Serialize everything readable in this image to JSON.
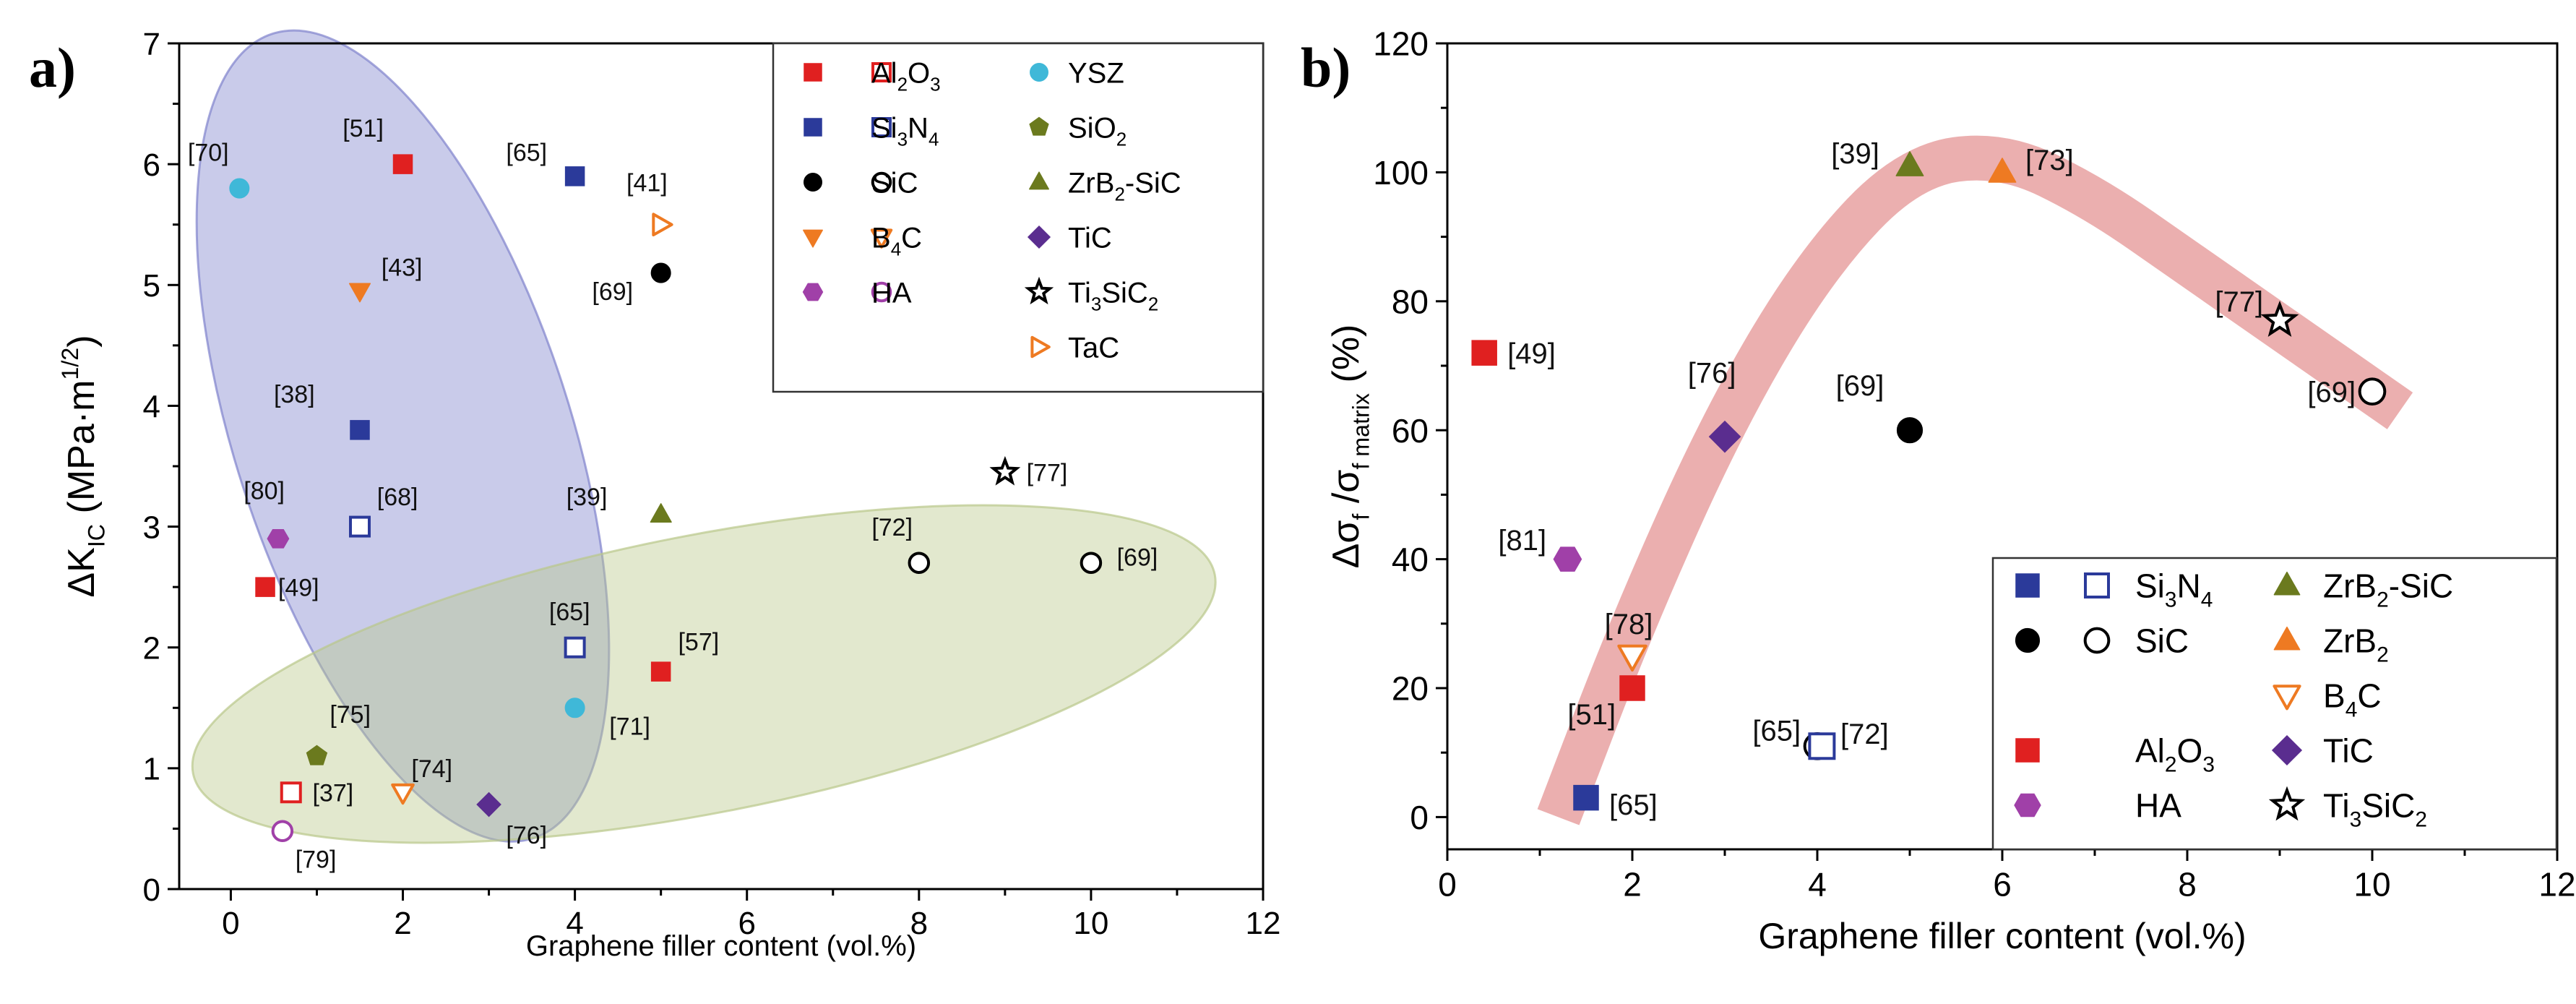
{
  "chart_data": [
    {
      "panel": "a)",
      "type": "scatter",
      "xlabel": "Graphene filler content (vol.%)",
      "ylabel": {
        "delta": "Δ",
        "K": "K",
        "sub": "IC",
        "units": " (MPa·m",
        "sup": "1/2",
        "close": ")"
      },
      "xlim": [
        -0.6,
        12
      ],
      "ylim": [
        0,
        7
      ],
      "xticks": [
        0,
        2,
        4,
        6,
        8,
        10,
        12
      ],
      "yticks": [
        0,
        1,
        2,
        3,
        4,
        5,
        6,
        7
      ],
      "grid": false,
      "legend_position": "top-right",
      "legend": [
        {
          "col": 0,
          "row": 0,
          "markers": [
            [
              "square",
              true
            ],
            [
              "square",
              false
            ]
          ],
          "color": "#e02020",
          "label": [
            [
              "Al",
              ""
            ],
            [
              "2",
              "sub"
            ],
            [
              "O",
              ""
            ],
            [
              "3",
              "sub"
            ]
          ]
        },
        {
          "col": 0,
          "row": 1,
          "markers": [
            [
              "square",
              true
            ],
            [
              "square",
              false
            ]
          ],
          "color": "#2b3a9a",
          "label": [
            [
              "Si",
              ""
            ],
            [
              "3",
              "sub"
            ],
            [
              "N",
              ""
            ],
            [
              "4",
              "sub"
            ]
          ]
        },
        {
          "col": 0,
          "row": 2,
          "markers": [
            [
              "circle",
              true
            ],
            [
              "circle",
              false
            ]
          ],
          "color": "#000000",
          "label": [
            [
              "SiC",
              ""
            ]
          ]
        },
        {
          "col": 0,
          "row": 3,
          "markers": [
            [
              "tri-down",
              true
            ],
            [
              "tri-down",
              false
            ]
          ],
          "color": "#ee7a22",
          "label": [
            [
              "B",
              ""
            ],
            [
              "4",
              "sub"
            ],
            [
              "C",
              ""
            ]
          ]
        },
        {
          "col": 0,
          "row": 4,
          "markers": [
            [
              "hexagon",
              true
            ],
            [
              "circle",
              false
            ]
          ],
          "color": "#a040a8",
          "label": [
            [
              "HA",
              ""
            ]
          ]
        },
        {
          "col": 1,
          "row": 0,
          "markers": [
            [
              "circle",
              true
            ]
          ],
          "color": "#3fb8d8",
          "label": [
            [
              "YSZ",
              ""
            ]
          ]
        },
        {
          "col": 1,
          "row": 1,
          "markers": [
            [
              "pentagon",
              true
            ]
          ],
          "color": "#6b7a1e",
          "label": [
            [
              "SiO",
              ""
            ],
            [
              "2",
              "sub"
            ]
          ]
        },
        {
          "col": 1,
          "row": 2,
          "markers": [
            [
              "tri-up",
              true
            ]
          ],
          "color": "#6b7a1e",
          "label": [
            [
              "ZrB",
              ""
            ],
            [
              "2",
              "sub"
            ],
            [
              "-SiC",
              ""
            ]
          ]
        },
        {
          "col": 1,
          "row": 3,
          "markers": [
            [
              "diamond",
              true
            ]
          ],
          "color": "#5a2d8f",
          "label": [
            [
              "TiC",
              ""
            ]
          ]
        },
        {
          "col": 1,
          "row": 4,
          "markers": [
            [
              "star",
              false
            ]
          ],
          "color": "#000000",
          "label": [
            [
              "Ti",
              ""
            ],
            [
              "3",
              "sub"
            ],
            [
              "SiC",
              ""
            ],
            [
              "2",
              "sub"
            ]
          ]
        },
        {
          "col": 1,
          "row": 5,
          "markers": [
            [
              "tri-right",
              false
            ]
          ],
          "color": "#ee7a22",
          "label": [
            [
              "TaC",
              ""
            ]
          ]
        }
      ],
      "points": [
        {
          "material": "YSZ",
          "shape": "circle",
          "filled": true,
          "color": "#3fb8d8",
          "x": 0.1,
          "y": 5.8,
          "ref": "[70]",
          "lx": -0.5,
          "ly": 6.1
        },
        {
          "material": "Al2O3",
          "shape": "square",
          "filled": true,
          "color": "#e02020",
          "x": 2.0,
          "y": 6.0,
          "ref": "[51]",
          "lx": 1.3,
          "ly": 6.3
        },
        {
          "material": "Si3N4",
          "shape": "square",
          "filled": true,
          "color": "#2b3a9a",
          "x": 4.0,
          "y": 5.9,
          "ref": "[65]",
          "lx": 3.2,
          "ly": 6.1
        },
        {
          "material": "TaC",
          "shape": "tri-right",
          "filled": false,
          "color": "#ee7a22",
          "x": 5.0,
          "y": 5.5,
          "ref": "[41]",
          "lx": 4.6,
          "ly": 5.85
        },
        {
          "material": "SiC",
          "shape": "circle",
          "filled": true,
          "color": "#000000",
          "x": 5.0,
          "y": 5.1,
          "ref": "[69]",
          "lx": 4.2,
          "ly": 4.95
        },
        {
          "material": "B4C",
          "shape": "tri-down",
          "filled": true,
          "color": "#ee7a22",
          "x": 1.5,
          "y": 4.95,
          "ref": "[43]",
          "lx": 1.75,
          "ly": 5.15
        },
        {
          "material": "Si3N4",
          "shape": "square",
          "filled": true,
          "color": "#2b3a9a",
          "x": 1.5,
          "y": 3.8,
          "ref": "[38]",
          "lx": 0.5,
          "ly": 4.1
        },
        {
          "material": "Si3N4",
          "shape": "square",
          "filled": false,
          "color": "#2b3a9a",
          "x": 1.5,
          "y": 3.0,
          "ref": "[68]",
          "lx": 1.7,
          "ly": 3.25
        },
        {
          "material": "ZrB2-SiC",
          "shape": "tri-up",
          "filled": true,
          "color": "#6b7a1e",
          "x": 5.0,
          "y": 3.1,
          "ref": "[39]",
          "lx": 3.9,
          "ly": 3.25
        },
        {
          "material": "HA",
          "shape": "hexagon",
          "filled": true,
          "color": "#a040a8",
          "x": 0.55,
          "y": 2.9,
          "ref": "[80]",
          "lx": 0.15,
          "ly": 3.3
        },
        {
          "material": "Al2O3",
          "shape": "square",
          "filled": true,
          "color": "#e02020",
          "x": 0.4,
          "y": 2.5,
          "ref": "[49]",
          "lx": 0.55,
          "ly": 2.5
        },
        {
          "material": "Ti3SiC2",
          "shape": "star",
          "filled": false,
          "color": "#000000",
          "x": 9.0,
          "y": 3.45,
          "ref": "[77]",
          "lx": 9.25,
          "ly": 3.45
        },
        {
          "material": "SiC",
          "shape": "circle",
          "filled": false,
          "color": "#000000",
          "x": 8.0,
          "y": 2.7,
          "ref": "[72]",
          "lx": 7.45,
          "ly": 3.0
        },
        {
          "material": "SiC",
          "shape": "circle",
          "filled": false,
          "color": "#000000",
          "x": 10.0,
          "y": 2.7,
          "ref": "[69]",
          "lx": 10.3,
          "ly": 2.75
        },
        {
          "material": "Si3N4",
          "shape": "square",
          "filled": false,
          "color": "#2b3a9a",
          "x": 4.0,
          "y": 2.0,
          "ref": "[65]",
          "lx": 3.7,
          "ly": 2.3
        },
        {
          "material": "Al2O3",
          "shape": "square",
          "filled": true,
          "color": "#e02020",
          "x": 5.0,
          "y": 1.8,
          "ref": "[57]",
          "lx": 5.2,
          "ly": 2.05
        },
        {
          "material": "YSZ",
          "shape": "circle",
          "filled": true,
          "color": "#3fb8d8",
          "x": 4.0,
          "y": 1.5,
          "ref": "[71]",
          "lx": 4.4,
          "ly": 1.35
        },
        {
          "material": "SiO2",
          "shape": "pentagon",
          "filled": true,
          "color": "#6b7a1e",
          "x": 1.0,
          "y": 1.1,
          "ref": "[75]",
          "lx": 1.15,
          "ly": 1.45
        },
        {
          "material": "B4C",
          "shape": "tri-down",
          "filled": false,
          "color": "#ee7a22",
          "x": 2.0,
          "y": 0.8,
          "ref": "[74]",
          "lx": 2.1,
          "ly": 1.0
        },
        {
          "material": "Al2O3",
          "shape": "square",
          "filled": false,
          "color": "#e02020",
          "x": 0.7,
          "y": 0.8,
          "ref": "[37]",
          "lx": 0.95,
          "ly": 0.8
        },
        {
          "material": "TiC",
          "shape": "diamond",
          "filled": true,
          "color": "#5a2d8f",
          "x": 3.0,
          "y": 0.7,
          "ref": "[76]",
          "lx": 3.2,
          "ly": 0.45
        },
        {
          "material": "HA",
          "shape": "circle",
          "filled": false,
          "color": "#a040a8",
          "x": 0.6,
          "y": 0.48,
          "ref": "[79]",
          "lx": 0.75,
          "ly": 0.25
        }
      ],
      "regions": [
        {
          "color": "#7f82cc",
          "cx": 2.0,
          "cy": 3.75,
          "rx": 1.95,
          "ry": 3.5,
          "rotate": -18
        },
        {
          "color": "#b9c88a",
          "cx": 5.5,
          "cy": 1.78,
          "rx": 6.05,
          "ry": 1.15,
          "rotate": -11
        }
      ]
    },
    {
      "panel": "b)",
      "type": "scatter",
      "xlabel": "Graphene filler content (vol.%)",
      "ylabel": {
        "delta": "Δσ",
        "sub1": "f",
        "slash": " /σ",
        "sub2": "f matrix",
        "units": " (%)"
      },
      "xlim": [
        0,
        12
      ],
      "ylim": [
        -5,
        120
      ],
      "xticks": [
        0,
        2,
        4,
        6,
        8,
        10,
        12
      ],
      "yticks": [
        0,
        20,
        40,
        60,
        80,
        100,
        120
      ],
      "grid": false,
      "legend_position": "bottom-right",
      "legend": [
        {
          "col": 0,
          "row": 0,
          "markers": [
            [
              "square",
              true
            ],
            [
              "square",
              false
            ]
          ],
          "color": "#2b3a9a",
          "label": [
            [
              "Si",
              ""
            ],
            [
              "3",
              "sub"
            ],
            [
              "N",
              ""
            ],
            [
              "4",
              "sub"
            ]
          ]
        },
        {
          "col": 0,
          "row": 1,
          "markers": [
            [
              "circle",
              true
            ],
            [
              "circle",
              false
            ]
          ],
          "color": "#000000",
          "label": [
            [
              "SiC",
              ""
            ]
          ]
        },
        {
          "col": 0,
          "row": 3,
          "markers": [
            [
              "square",
              true
            ]
          ],
          "color": "#e02020",
          "label": [
            [
              "Al",
              ""
            ],
            [
              "2",
              "sub"
            ],
            [
              "O",
              ""
            ],
            [
              "3",
              "sub"
            ]
          ]
        },
        {
          "col": 0,
          "row": 4,
          "markers": [
            [
              "hexagon",
              true
            ]
          ],
          "color": "#a040a8",
          "label": [
            [
              "HA",
              ""
            ]
          ]
        },
        {
          "col": 1,
          "row": 0,
          "markers": [
            [
              "tri-up",
              true
            ]
          ],
          "color": "#6b7a1e",
          "label": [
            [
              "ZrB",
              ""
            ],
            [
              "2",
              "sub"
            ],
            [
              "-SiC",
              ""
            ]
          ]
        },
        {
          "col": 1,
          "row": 1,
          "markers": [
            [
              "tri-up",
              true
            ]
          ],
          "color": "#ee7a22",
          "label": [
            [
              "ZrB",
              ""
            ],
            [
              "2",
              "sub"
            ]
          ]
        },
        {
          "col": 1,
          "row": 2,
          "markers": [
            [
              "tri-down",
              false
            ]
          ],
          "color": "#ee7a22",
          "label": [
            [
              "B",
              ""
            ],
            [
              "4",
              "sub"
            ],
            [
              "C",
              ""
            ]
          ]
        },
        {
          "col": 1,
          "row": 3,
          "markers": [
            [
              "diamond",
              true
            ]
          ],
          "color": "#5a2d8f",
          "label": [
            [
              "TiC",
              ""
            ]
          ]
        },
        {
          "col": 1,
          "row": 4,
          "markers": [
            [
              "star",
              false
            ]
          ],
          "color": "#000000",
          "label": [
            [
              "Ti",
              ""
            ],
            [
              "3",
              "sub"
            ],
            [
              "SiC",
              ""
            ],
            [
              "2",
              "sub"
            ]
          ]
        }
      ],
      "points": [
        {
          "material": "Al2O3",
          "shape": "square",
          "filled": true,
          "color": "#e02020",
          "x": 0.4,
          "y": 72,
          "ref": "[49]",
          "lx": 0.65,
          "ly": 72
        },
        {
          "material": "ZrB2-SiC",
          "shape": "tri-up",
          "filled": true,
          "color": "#6b7a1e",
          "x": 5.0,
          "y": 101,
          "ref": "[39]",
          "lx": 4.15,
          "ly": 103
        },
        {
          "material": "ZrB2",
          "shape": "tri-up",
          "filled": true,
          "color": "#ee7a22",
          "x": 6.0,
          "y": 100,
          "ref": "[73]",
          "lx": 6.25,
          "ly": 102
        },
        {
          "material": "Ti3SiC2",
          "shape": "star",
          "filled": false,
          "color": "#000000",
          "x": 9.0,
          "y": 77,
          "ref": "[77]",
          "lx": 8.3,
          "ly": 80
        },
        {
          "material": "SiC",
          "shape": "circle",
          "filled": false,
          "color": "#000000",
          "x": 10.0,
          "y": 66,
          "ref": "[69]",
          "lx": 9.3,
          "ly": 66
        },
        {
          "material": "TiC",
          "shape": "diamond",
          "filled": true,
          "color": "#5a2d8f",
          "x": 3.0,
          "y": 59,
          "ref": "[76]",
          "lx": 2.6,
          "ly": 69
        },
        {
          "material": "SiC",
          "shape": "circle",
          "filled": true,
          "color": "#000000",
          "x": 5.0,
          "y": 60,
          "ref": "[69]",
          "lx": 4.2,
          "ly": 67
        },
        {
          "material": "HA",
          "shape": "hexagon",
          "filled": true,
          "color": "#a040a8",
          "x": 1.3,
          "y": 40,
          "ref": "[81]",
          "lx": 0.55,
          "ly": 43
        },
        {
          "material": "B4C",
          "shape": "tri-down",
          "filled": false,
          "color": "#ee7a22",
          "x": 2.0,
          "y": 25,
          "ref": "[78]",
          "lx": 1.7,
          "ly": 30
        },
        {
          "material": "Al2O3",
          "shape": "square",
          "filled": true,
          "color": "#e02020",
          "x": 2.0,
          "y": 20,
          "ref": "[51]",
          "lx": 1.3,
          "ly": 16
        },
        {
          "material": "SiC",
          "shape": "circle",
          "filled": false,
          "color": "#000000",
          "x": 4.0,
          "y": 11,
          "ref": "[65]",
          "lx": 3.3,
          "ly": 13.5
        },
        {
          "material": "Si3N4",
          "shape": "square",
          "filled": false,
          "color": "#2b3a9a",
          "x": 4.05,
          "y": 11,
          "ref": "[72]",
          "lx": 4.25,
          "ly": 13
        },
        {
          "material": "Si3N4",
          "shape": "square",
          "filled": true,
          "color": "#2b3a9a",
          "x": 1.5,
          "y": 3,
          "ref": "[65]",
          "lx": 1.75,
          "ly": 2
        }
      ],
      "trend_band": {
        "color": "#e8a1a1",
        "x": [
          1.2,
          2.0,
          3.0,
          4.0,
          5.0,
          6.0,
          7.0,
          8.0,
          9.0,
          10.3
        ],
        "y": [
          0,
          30,
          62,
          86,
          101,
          103,
          96,
          86,
          76,
          63
        ]
      }
    }
  ]
}
